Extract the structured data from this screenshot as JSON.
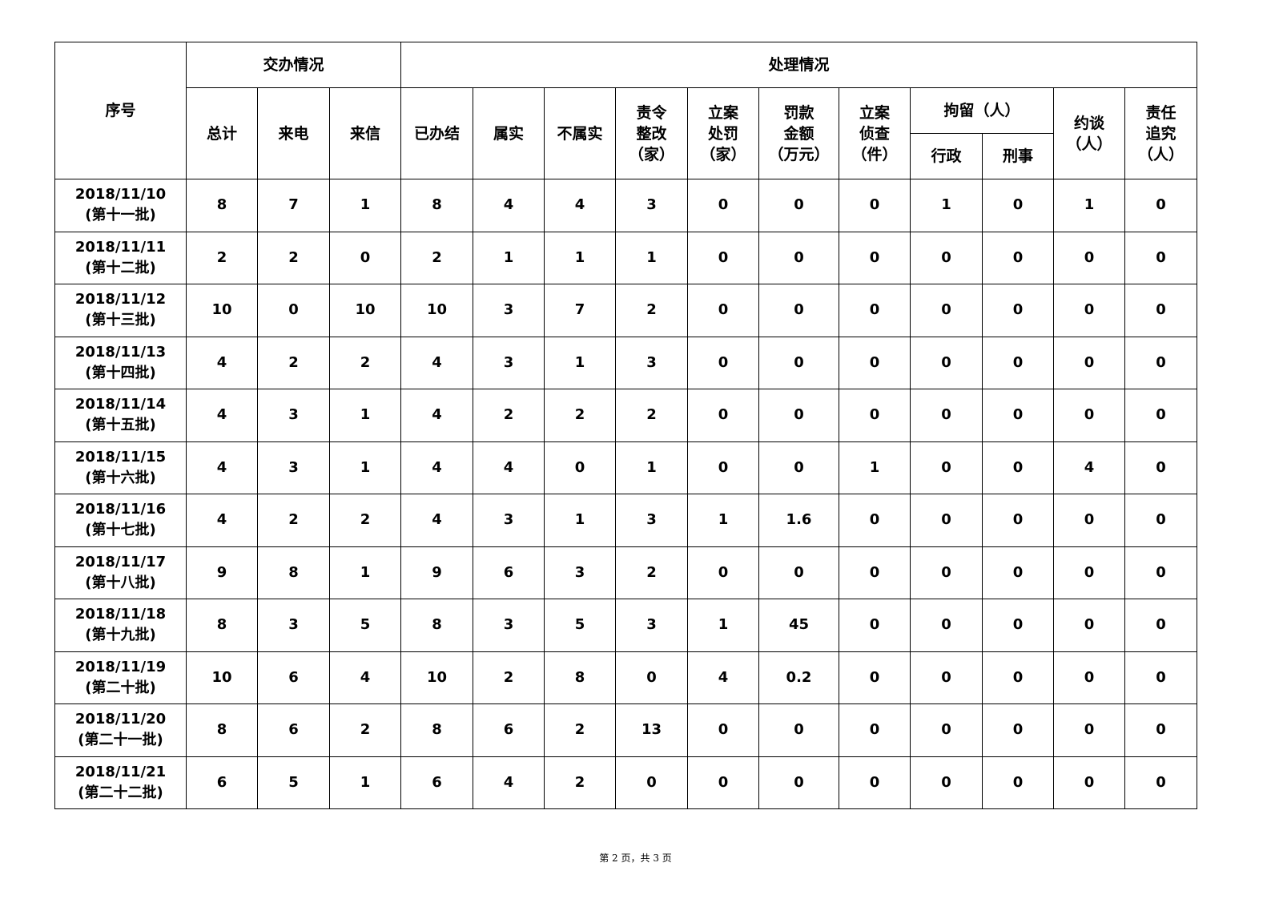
{
  "header": {
    "seq": "序号",
    "group_assign": "交办情况",
    "group_handle": "处理情况",
    "assign_cols": [
      "总计",
      "来电",
      "来信"
    ],
    "handle_cols": [
      "已办结",
      "属实",
      "不属实",
      "责令\n整改\n（家）",
      "立案\n处罚\n（家）",
      "罚款\n金额\n（万元）",
      "立案\n侦查\n（件）"
    ],
    "detain": "拘留（人）",
    "detain_sub": [
      "行政",
      "刑事"
    ],
    "interview": "约谈\n（人）",
    "accountability": "责任\n追究\n（人）"
  },
  "rows": [
    {
      "date": "2018/11/10",
      "batch": "(第十一批)",
      "v": [
        "8",
        "7",
        "1",
        "8",
        "4",
        "4",
        "3",
        "0",
        "0",
        "0",
        "1",
        "0",
        "1",
        "0"
      ]
    },
    {
      "date": "2018/11/11",
      "batch": "(第十二批)",
      "v": [
        "2",
        "2",
        "0",
        "2",
        "1",
        "1",
        "1",
        "0",
        "0",
        "0",
        "0",
        "0",
        "0",
        "0"
      ]
    },
    {
      "date": "2018/11/12",
      "batch": "(第十三批)",
      "v": [
        "10",
        "0",
        "10",
        "10",
        "3",
        "7",
        "2",
        "0",
        "0",
        "0",
        "0",
        "0",
        "0",
        "0"
      ]
    },
    {
      "date": "2018/11/13",
      "batch": "(第十四批)",
      "v": [
        "4",
        "2",
        "2",
        "4",
        "3",
        "1",
        "3",
        "0",
        "0",
        "0",
        "0",
        "0",
        "0",
        "0"
      ]
    },
    {
      "date": "2018/11/14",
      "batch": "(第十五批)",
      "v": [
        "4",
        "3",
        "1",
        "4",
        "2",
        "2",
        "2",
        "0",
        "0",
        "0",
        "0",
        "0",
        "0",
        "0"
      ]
    },
    {
      "date": "2018/11/15",
      "batch": "(第十六批)",
      "v": [
        "4",
        "3",
        "1",
        "4",
        "4",
        "0",
        "1",
        "0",
        "0",
        "1",
        "0",
        "0",
        "4",
        "0"
      ]
    },
    {
      "date": "2018/11/16",
      "batch": "(第十七批)",
      "v": [
        "4",
        "2",
        "2",
        "4",
        "3",
        "1",
        "3",
        "1",
        "1.6",
        "0",
        "0",
        "0",
        "0",
        "0"
      ]
    },
    {
      "date": "2018/11/17",
      "batch": "(第十八批)",
      "v": [
        "9",
        "8",
        "1",
        "9",
        "6",
        "3",
        "2",
        "0",
        "0",
        "0",
        "0",
        "0",
        "0",
        "0"
      ]
    },
    {
      "date": "2018/11/18",
      "batch": "(第十九批)",
      "v": [
        "8",
        "3",
        "5",
        "8",
        "3",
        "5",
        "3",
        "1",
        "45",
        "0",
        "0",
        "0",
        "0",
        "0"
      ]
    },
    {
      "date": "2018/11/19",
      "batch": "(第二十批)",
      "v": [
        "10",
        "6",
        "4",
        "10",
        "2",
        "8",
        "0",
        "4",
        "0.2",
        "0",
        "0",
        "0",
        "0",
        "0"
      ]
    },
    {
      "date": "2018/11/20",
      "batch": "(第二十一批)",
      "v": [
        "8",
        "6",
        "2",
        "8",
        "6",
        "2",
        "13",
        "0",
        "0",
        "0",
        "0",
        "0",
        "0",
        "0"
      ]
    },
    {
      "date": "2018/11/21",
      "batch": "(第二十二批)",
      "v": [
        "6",
        "5",
        "1",
        "6",
        "4",
        "2",
        "0",
        "0",
        "0",
        "0",
        "0",
        "0",
        "0",
        "0"
      ]
    }
  ],
  "footer": "第 2 页，共 3 页"
}
